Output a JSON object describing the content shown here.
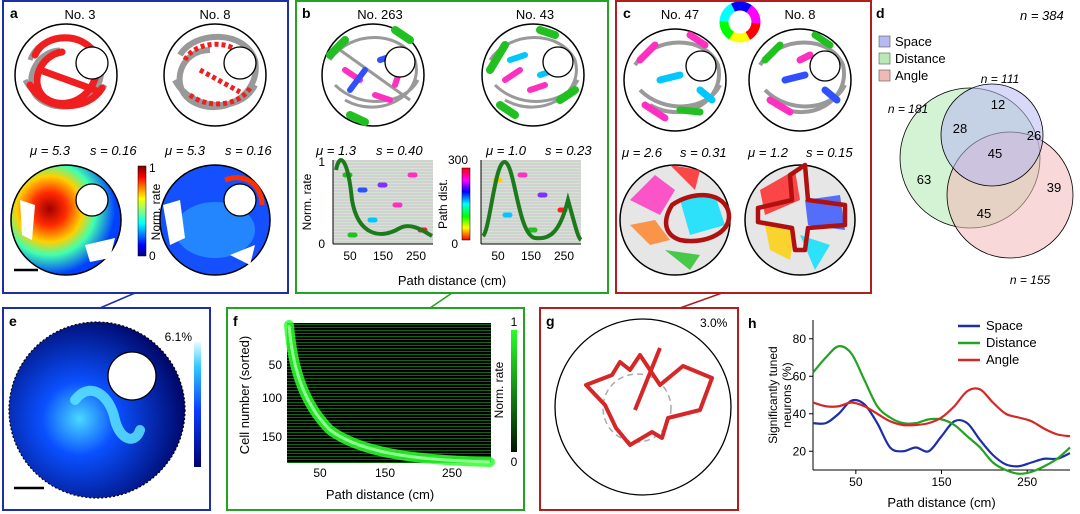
{
  "panels": {
    "a": {
      "letter": "a",
      "cells": [
        "No. 3",
        "No. 8"
      ],
      "stats": [
        {
          "mu": "μ = 5.3",
          "s": "s = 0.16"
        },
        {
          "mu": "μ = 5.3",
          "s": "s = 0.16"
        }
      ],
      "colorbar": {
        "label": "Norm. rate",
        "max": "1",
        "min": "0"
      }
    },
    "b": {
      "letter": "b",
      "cells": [
        "No. 263",
        "No. 43"
      ],
      "stats": [
        {
          "mu": "μ = 1.3",
          "s": "s = 0.40"
        },
        {
          "mu": "μ = 1.0",
          "s": "s = 0.23"
        }
      ],
      "ylabel_left": "Norm. rate",
      "ylabel_right": "Path dist.",
      "left_yticks": [
        "1",
        "0"
      ],
      "right_yticks": [
        "300",
        "0"
      ],
      "xticks": [
        "50",
        "150",
        "250"
      ],
      "xlabel": "Path distance (cm)"
    },
    "c": {
      "letter": "c",
      "cells": [
        "No. 47",
        "No. 8"
      ],
      "stats": [
        {
          "mu": "μ = 2.6",
          "s": "s = 0.31"
        },
        {
          "mu": "μ = 1.2",
          "s": "s = 0.15"
        }
      ]
    },
    "d": {
      "letter": "d",
      "n_total": "n = 384",
      "legend": [
        {
          "label": "Space",
          "color": "#b8b8f2"
        },
        {
          "label": "Distance",
          "color": "#b8eab8"
        },
        {
          "label": "Angle",
          "color": "#f2b8b8"
        }
      ],
      "set_sizes": {
        "space": "n = 111",
        "distance": "n = 181",
        "angle": "n = 155"
      },
      "regions": {
        "space_only": "12",
        "space_distance": "28",
        "space_angle": "26",
        "all": "45",
        "distance_only": "63",
        "distance_angle": "45",
        "angle_only": "39"
      }
    },
    "e": {
      "letter": "e",
      "percent": "6.1%"
    },
    "f": {
      "letter": "f",
      "ylabel": "Cell number (sorted)",
      "yticks": [
        "50",
        "100",
        "150"
      ],
      "xticks": [
        "50",
        "150",
        "250"
      ],
      "xlabel": "Path distance (cm)",
      "colorbar": {
        "label": "Norm. rate",
        "max": "1",
        "min": "0"
      }
    },
    "g": {
      "letter": "g",
      "percent": "3.0%"
    },
    "h": {
      "letter": "h"
    }
  },
  "chart_data": {
    "type": "line",
    "ylabel": "Significantly tuned neurons (%)",
    "xlabel": "Path distance (cm)",
    "xlim": [
      0,
      300
    ],
    "ylim": [
      10,
      90
    ],
    "xticks": [
      50,
      150,
      250
    ],
    "yticks": [
      20,
      40,
      60,
      80
    ],
    "legend_position": "top-right",
    "series": [
      {
        "name": "Space",
        "color": "#1c2fa8",
        "x": [
          0,
          15,
          30,
          45,
          60,
          75,
          90,
          105,
          120,
          135,
          150,
          165,
          180,
          195,
          210,
          225,
          240,
          255,
          270,
          285,
          300
        ],
        "values": [
          35,
          35,
          40,
          47,
          45,
          35,
          22,
          20,
          22,
          20,
          28,
          36,
          35,
          26,
          18,
          13,
          12,
          14,
          16,
          16,
          19
        ]
      },
      {
        "name": "Distance",
        "color": "#22a322",
        "x": [
          0,
          15,
          30,
          45,
          60,
          75,
          90,
          105,
          120,
          135,
          150,
          165,
          180,
          195,
          210,
          225,
          240,
          255,
          270,
          285,
          300
        ],
        "values": [
          62,
          70,
          76,
          72,
          58,
          44,
          38,
          35,
          35,
          37,
          37,
          34,
          28,
          22,
          14,
          10,
          8,
          9,
          12,
          16,
          22
        ]
      },
      {
        "name": "Angle",
        "color": "#d42828",
        "x": [
          0,
          15,
          30,
          45,
          60,
          75,
          90,
          105,
          120,
          135,
          150,
          165,
          180,
          195,
          210,
          225,
          240,
          255,
          270,
          285,
          300
        ],
        "values": [
          46,
          44,
          44,
          46,
          44,
          40,
          36,
          34,
          34,
          35,
          38,
          44,
          52,
          53,
          46,
          40,
          38,
          36,
          32,
          29,
          28
        ]
      }
    ]
  }
}
